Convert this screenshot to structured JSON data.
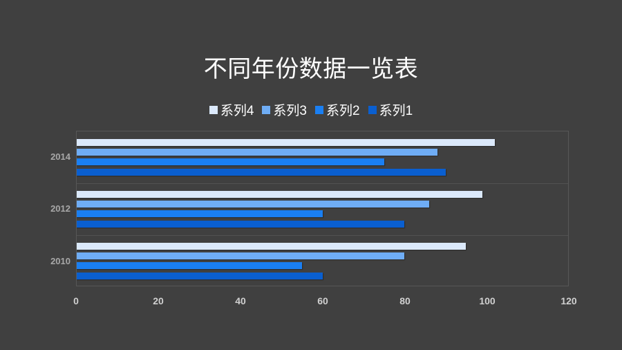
{
  "title": "不同年份数据一览表",
  "legend": [
    {
      "label": "系列4",
      "color": "#dbe9fb"
    },
    {
      "label": "系列3",
      "color": "#6fadf5"
    },
    {
      "label": "系列2",
      "color": "#1a7ff2"
    },
    {
      "label": "系列1",
      "color": "#0a5fd0"
    }
  ],
  "x_ticks": [
    "0",
    "20",
    "40",
    "60",
    "80",
    "100",
    "120"
  ],
  "y_labels": [
    "2014",
    "2012",
    "2010"
  ],
  "colors": {
    "background": "#404040",
    "grid": "#575757",
    "axis_text": "#d0d0d0",
    "category_text": "#a8a8a8"
  },
  "chart_data": {
    "type": "bar",
    "orientation": "horizontal",
    "title": "不同年份数据一览表",
    "categories": [
      "2010",
      "2012",
      "2014"
    ],
    "series": [
      {
        "name": "系列1",
        "color": "#0a5fd0",
        "values": [
          60,
          80,
          90
        ]
      },
      {
        "name": "系列2",
        "color": "#1a7ff2",
        "values": [
          55,
          60,
          75
        ]
      },
      {
        "name": "系列3",
        "color": "#6fadf5",
        "values": [
          80,
          86,
          88
        ]
      },
      {
        "name": "系列4",
        "color": "#dbe9fb",
        "values": [
          95,
          99,
          102
        ]
      }
    ],
    "xlabel": "",
    "ylabel": "",
    "xlim": [
      0,
      120
    ],
    "x_ticks": [
      0,
      20,
      40,
      60,
      80,
      100,
      120
    ],
    "grid": false,
    "legend_position": "top"
  }
}
